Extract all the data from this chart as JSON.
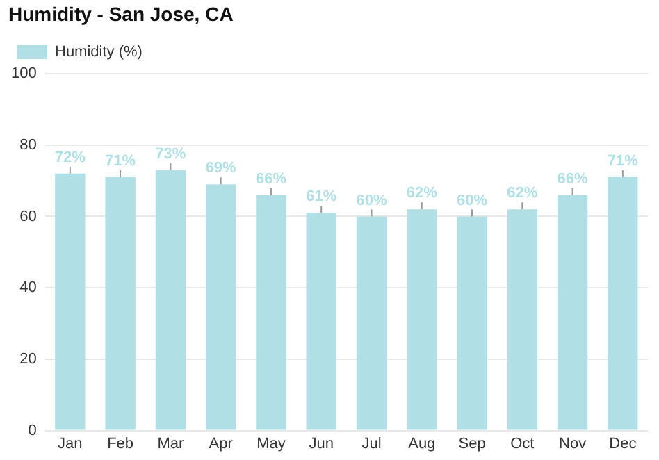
{
  "chart_data": {
    "type": "bar",
    "title": "Humidity - San Jose, CA",
    "categories": [
      "Jan",
      "Feb",
      "Mar",
      "Apr",
      "May",
      "Jun",
      "Jul",
      "Aug",
      "Sep",
      "Oct",
      "Nov",
      "Dec"
    ],
    "series": [
      {
        "name": "Humidity (%)",
        "color": "#b0dfe5",
        "values": [
          72,
          71,
          73,
          69,
          66,
          61,
          60,
          62,
          60,
          62,
          66,
          71
        ],
        "value_labels": [
          "72%",
          "71%",
          "73%",
          "69%",
          "66%",
          "61%",
          "60%",
          "62%",
          "60%",
          "62%",
          "66%",
          "71%"
        ]
      }
    ],
    "ylim": [
      0,
      100
    ],
    "yticks": [
      0,
      20,
      40,
      60,
      80,
      100
    ],
    "grid": "y",
    "legend": "top left"
  }
}
